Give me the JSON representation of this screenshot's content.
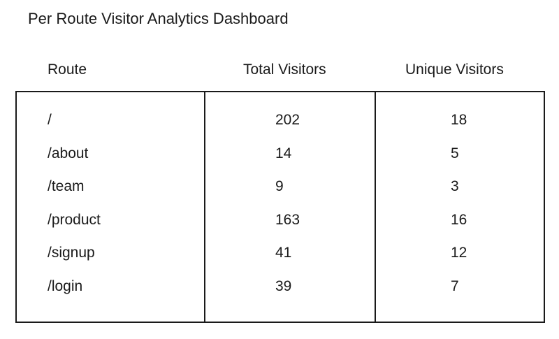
{
  "title": "Per Route Visitor Analytics Dashboard",
  "columns": {
    "route": "Route",
    "total": "Total Visitors",
    "unique": "Unique Visitors"
  },
  "rows": [
    {
      "route": "/",
      "total": "202",
      "unique": "18"
    },
    {
      "route": "/about",
      "total": "14",
      "unique": "5"
    },
    {
      "route": "/team",
      "total": "9",
      "unique": "3"
    },
    {
      "route": "/product",
      "total": "163",
      "unique": "16"
    },
    {
      "route": "/signup",
      "total": "41",
      "unique": "12"
    },
    {
      "route": "/login",
      "total": "39",
      "unique": "7"
    }
  ]
}
